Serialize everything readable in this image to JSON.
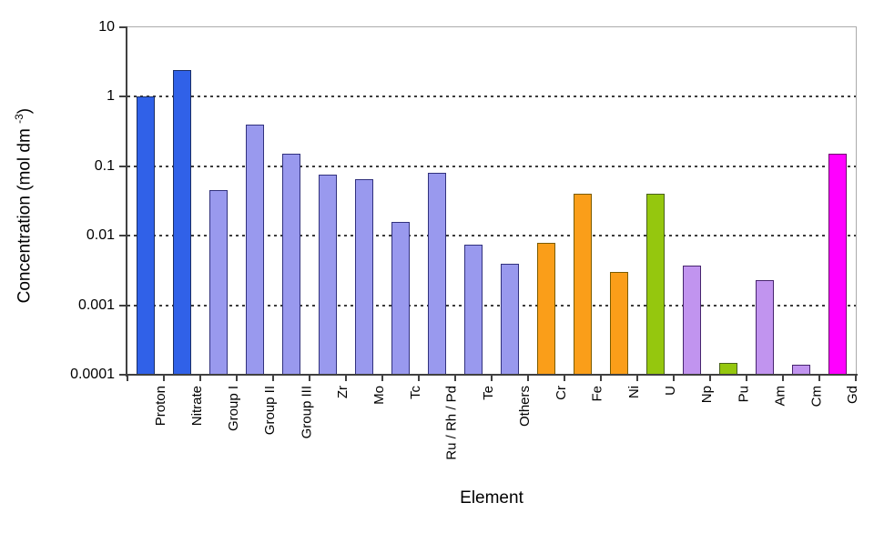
{
  "chart_data": {
    "type": "bar",
    "scale": "log",
    "title": "",
    "xlabel": "Element",
    "ylabel": {
      "text": "Concentration (mol dm ",
      "sup": "-3",
      "suffix": ")"
    },
    "ylim": [
      0.0001,
      10
    ],
    "yticks": [
      {
        "label": "10",
        "value": 10
      },
      {
        "label": "1",
        "value": 1
      },
      {
        "label": "0.1",
        "value": 0.1
      },
      {
        "label": "0.01",
        "value": 0.01
      },
      {
        "label": "0.001",
        "value": 0.001
      },
      {
        "label": "0.0001",
        "value": 0.0001
      }
    ],
    "gridlines": [
      1,
      0.1,
      0.01,
      0.001
    ],
    "legend": "none",
    "categories": [
      "Proton",
      "Nitrate",
      "Group I",
      "Group II",
      "Group III",
      "Zr",
      "Mo",
      "Tc",
      "Ru / Rh / Pd",
      "Te",
      "Others",
      "Cr",
      "Fe",
      "Ni",
      "U",
      "Np",
      "Pu",
      "Am",
      "Cm",
      "Gd"
    ],
    "values": [
      1.0,
      2.4,
      0.045,
      0.4,
      0.15,
      0.075,
      0.065,
      0.016,
      0.08,
      0.0075,
      0.004,
      0.008,
      0.04,
      0.003,
      0.04,
      0.0037,
      0.00015,
      0.0023,
      0.00014,
      0.15
    ],
    "bar_color_keys": [
      "blue",
      "blue",
      "periwinkle",
      "periwinkle",
      "periwinkle",
      "periwinkle",
      "periwinkle",
      "periwinkle",
      "periwinkle",
      "periwinkle",
      "periwinkle",
      "orange",
      "orange",
      "orange",
      "green",
      "lavender",
      "green",
      "lavender",
      "lavender",
      "magenta"
    ],
    "palette": {
      "blue": {
        "fill": "#3061E8",
        "border": "#1B2F66"
      },
      "periwinkle": {
        "fill": "#9999EE",
        "border": "#31317D"
      },
      "orange": {
        "fill": "#FA9E19",
        "border": "#7A5C00"
      },
      "green": {
        "fill": "#95C70E",
        "border": "#49611C"
      },
      "lavender": {
        "fill": "#C194EF",
        "border": "#46246E"
      },
      "magenta": {
        "fill": "#FF00FF",
        "border": "#6E006E"
      }
    },
    "grid_color": "#3C3C3C",
    "axis_color": "#404040",
    "frame_color": "#ABABAB",
    "background": "#FFFFFF"
  }
}
